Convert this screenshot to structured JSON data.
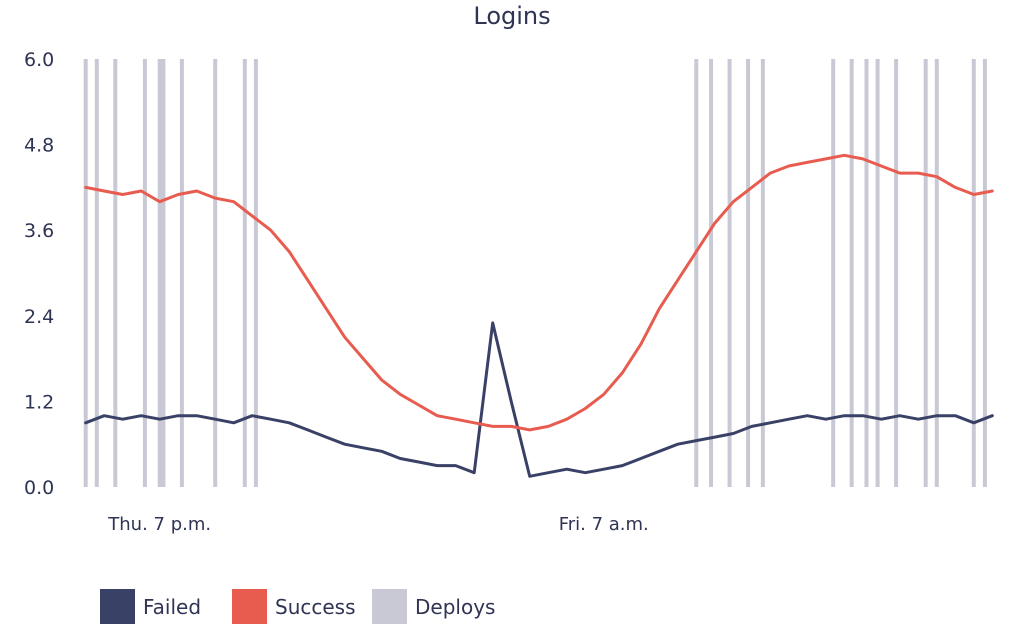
{
  "chart_data": {
    "type": "line",
    "title": "Logins",
    "xlabel": "",
    "ylabel": "",
    "ylim": [
      0,
      6
    ],
    "y_ticks": [
      "0.0",
      "1.2",
      "2.4",
      "3.6",
      "4.8",
      "6.0"
    ],
    "x_ticks": [
      {
        "label": "Thu. 7 p.m.",
        "x": 19
      },
      {
        "label": "Fri. 7 a.m.",
        "x": 31
      }
    ],
    "xlim": [
      16.9,
      41.6
    ],
    "grid": false,
    "legend_position": "bottom-left",
    "series": [
      {
        "name": "Failed",
        "color": "#3a4166",
        "x": [
          17.0,
          17.5,
          18.0,
          18.5,
          19.0,
          19.5,
          20.0,
          20.5,
          21.0,
          21.5,
          22.0,
          22.5,
          23.0,
          23.5,
          24.0,
          24.5,
          25.0,
          25.5,
          26.0,
          26.5,
          27.0,
          27.5,
          28.0,
          28.5,
          29.0,
          29.5,
          30.0,
          30.5,
          31.0,
          31.5,
          32.0,
          32.5,
          33.0,
          33.5,
          34.0,
          34.5,
          35.0,
          35.5,
          36.0,
          36.5,
          37.0,
          37.5,
          38.0,
          38.5,
          39.0,
          39.5,
          40.0,
          40.5,
          41.0,
          41.5
        ],
        "values": [
          0.9,
          1.0,
          0.95,
          1.0,
          0.95,
          1.0,
          1.0,
          0.95,
          0.9,
          1.0,
          0.95,
          0.9,
          0.8,
          0.7,
          0.6,
          0.55,
          0.5,
          0.4,
          0.35,
          0.3,
          0.3,
          0.2,
          2.3,
          1.2,
          0.15,
          0.2,
          0.25,
          0.2,
          0.25,
          0.3,
          0.4,
          0.5,
          0.6,
          0.65,
          0.7,
          0.75,
          0.85,
          0.9,
          0.95,
          1.0,
          0.95,
          1.0,
          1.0,
          0.95,
          1.0,
          0.95,
          1.0,
          1.0,
          0.9,
          1.0
        ]
      },
      {
        "name": "Success",
        "color": "#e85c50",
        "x": [
          17.0,
          17.5,
          18.0,
          18.5,
          19.0,
          19.5,
          20.0,
          20.5,
          21.0,
          21.5,
          22.0,
          22.5,
          23.0,
          23.5,
          24.0,
          24.5,
          25.0,
          25.5,
          26.0,
          26.5,
          27.0,
          27.5,
          28.0,
          28.5,
          29.0,
          29.5,
          30.0,
          30.5,
          31.0,
          31.5,
          32.0,
          32.5,
          33.0,
          33.5,
          34.0,
          34.5,
          35.0,
          35.5,
          36.0,
          36.5,
          37.0,
          37.5,
          38.0,
          38.5,
          39.0,
          39.5,
          40.0,
          40.5,
          41.0,
          41.5
        ],
        "values": [
          4.2,
          4.15,
          4.1,
          4.15,
          4.0,
          4.1,
          4.15,
          4.05,
          4.0,
          3.8,
          3.6,
          3.3,
          2.9,
          2.5,
          2.1,
          1.8,
          1.5,
          1.3,
          1.15,
          1.0,
          0.95,
          0.9,
          0.85,
          0.85,
          0.8,
          0.85,
          0.95,
          1.1,
          1.3,
          1.6,
          2.0,
          2.5,
          2.9,
          3.3,
          3.7,
          4.0,
          4.2,
          4.4,
          4.5,
          4.55,
          4.6,
          4.65,
          4.6,
          4.5,
          4.4,
          4.4,
          4.35,
          4.2,
          4.1,
          4.15
        ]
      }
    ],
    "deploys": {
      "name": "Deploys",
      "color": "#c8c9d4",
      "x": [
        17.0,
        17.3,
        17.8,
        18.6,
        19.0,
        19.1,
        19.6,
        20.5,
        21.3,
        21.6,
        33.5,
        33.9,
        34.4,
        34.9,
        35.3,
        37.2,
        37.7,
        38.1,
        38.4,
        38.9,
        39.7,
        40.0,
        41.0,
        41.3
      ]
    }
  }
}
